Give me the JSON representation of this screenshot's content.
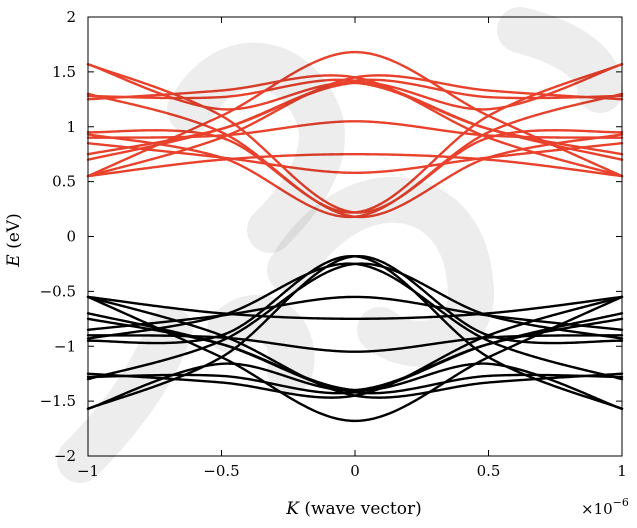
{
  "watermark": {
    "color": "#000000"
  },
  "chart_data": {
    "type": "line",
    "xlabel": {
      "symbol": "K",
      "text": " (wave vector)"
    },
    "ylabel": {
      "symbol": "E",
      "text": " (eV)"
    },
    "x_multiplier": {
      "base": "×10",
      "exponent": "−6"
    },
    "xlim": [
      -1,
      1
    ],
    "ylim": [
      -2,
      2
    ],
    "x_ticks": [
      -1,
      -0.5,
      0,
      0.5,
      1
    ],
    "x_tick_labels": [
      "−1",
      "−0.5",
      "0",
      "0.5",
      "1"
    ],
    "y_ticks": [
      -2,
      -1.5,
      -1,
      -0.5,
      0,
      0.5,
      1,
      1.5,
      2
    ],
    "y_tick_labels": [
      "−2",
      "−1.5",
      "−1",
      "−0.5",
      "0",
      "0.5",
      "1",
      "1.5",
      "2"
    ],
    "grid": false,
    "colors": {
      "conduction": "#e8412c",
      "valence": "#000000"
    },
    "x": [
      -1,
      -0.5,
      0,
      0.5,
      1
    ],
    "series": [
      {
        "group": "conduction",
        "values": [
          0.55,
          1.1,
          1.68,
          1.1,
          0.55
        ]
      },
      {
        "group": "conduction",
        "values": [
          0.55,
          0.9,
          1.45,
          1.33,
          1.25
        ]
      },
      {
        "group": "conduction",
        "values": [
          1.25,
          1.33,
          1.45,
          0.9,
          0.55
        ]
      },
      {
        "group": "conduction",
        "values": [
          0.7,
          0.98,
          1.42,
          1.27,
          1.28
        ]
      },
      {
        "group": "conduction",
        "values": [
          1.28,
          1.27,
          1.42,
          0.98,
          0.7
        ]
      },
      {
        "group": "conduction",
        "values": [
          0.75,
          0.98,
          1.4,
          1.16,
          1.57
        ]
      },
      {
        "group": "conduction",
        "values": [
          1.57,
          1.16,
          1.4,
          0.98,
          0.75
        ]
      },
      {
        "group": "conduction",
        "values": [
          0.9,
          0.92,
          1.05,
          0.92,
          0.9
        ]
      },
      {
        "group": "conduction",
        "values": [
          0.55,
          0.7,
          0.75,
          0.7,
          0.55
        ]
      },
      {
        "group": "conduction",
        "values": [
          1.57,
          1.1,
          0.22,
          0.9,
          0.95
        ]
      },
      {
        "group": "conduction",
        "values": [
          0.95,
          0.9,
          0.22,
          1.1,
          1.57
        ]
      },
      {
        "group": "conduction",
        "values": [
          1.3,
          0.95,
          0.18,
          0.72,
          0.93
        ]
      },
      {
        "group": "conduction",
        "values": [
          0.93,
          0.72,
          0.18,
          0.95,
          1.3
        ]
      },
      {
        "group": "conduction",
        "values": [
          0.85,
          0.72,
          0.58,
          0.72,
          0.85
        ]
      },
      {
        "group": "valence",
        "values": [
          -0.55,
          -1.1,
          -1.68,
          -1.1,
          -0.55
        ]
      },
      {
        "group": "valence",
        "values": [
          -0.55,
          -0.9,
          -1.45,
          -1.33,
          -1.25
        ]
      },
      {
        "group": "valence",
        "values": [
          -1.25,
          -1.33,
          -1.45,
          -0.9,
          -0.55
        ]
      },
      {
        "group": "valence",
        "values": [
          -0.7,
          -0.98,
          -1.42,
          -1.27,
          -1.28
        ]
      },
      {
        "group": "valence",
        "values": [
          -1.28,
          -1.27,
          -1.42,
          -0.98,
          -0.7
        ]
      },
      {
        "group": "valence",
        "values": [
          -0.75,
          -0.98,
          -1.4,
          -1.16,
          -1.57
        ]
      },
      {
        "group": "valence",
        "values": [
          -1.57,
          -1.16,
          -1.4,
          -0.98,
          -0.75
        ]
      },
      {
        "group": "valence",
        "values": [
          -0.9,
          -0.92,
          -1.05,
          -0.92,
          -0.9
        ]
      },
      {
        "group": "valence",
        "values": [
          -0.55,
          -0.7,
          -0.75,
          -0.7,
          -0.55
        ]
      },
      {
        "group": "valence",
        "values": [
          -1.57,
          -1.1,
          -0.18,
          -0.9,
          -0.95
        ]
      },
      {
        "group": "valence",
        "values": [
          -0.95,
          -0.9,
          -0.18,
          -1.1,
          -1.57
        ]
      },
      {
        "group": "valence",
        "values": [
          -1.3,
          -0.95,
          -0.25,
          -0.72,
          -0.93
        ]
      },
      {
        "group": "valence",
        "values": [
          -0.93,
          -0.72,
          -0.25,
          -0.95,
          -1.3
        ]
      },
      {
        "group": "valence",
        "values": [
          -0.85,
          -0.72,
          -0.55,
          -0.72,
          -0.85
        ]
      }
    ]
  }
}
